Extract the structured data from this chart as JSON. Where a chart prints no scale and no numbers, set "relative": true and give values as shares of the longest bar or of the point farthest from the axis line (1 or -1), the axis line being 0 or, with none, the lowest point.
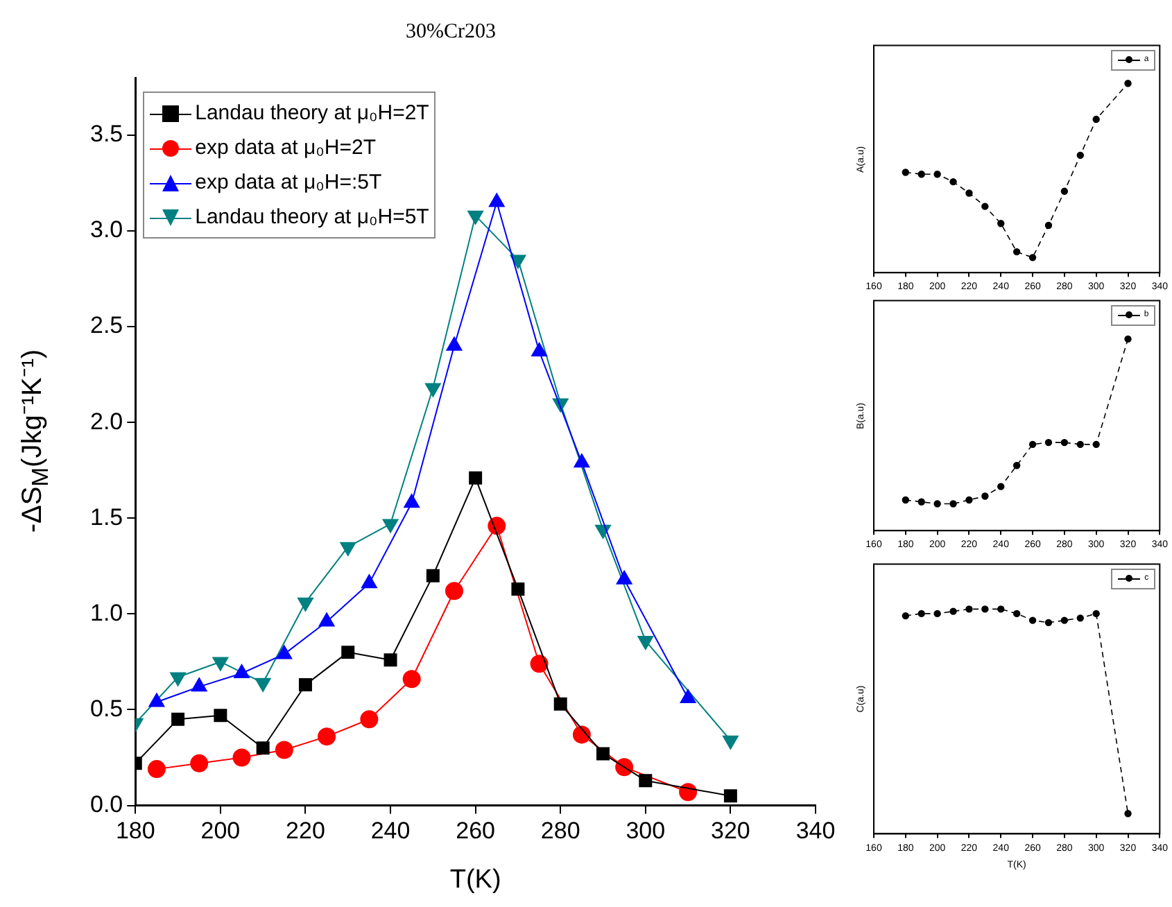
{
  "chart_data": [
    {
      "type": "line",
      "title": "30%Cr203",
      "xlabel": "T(K)",
      "ylabel": "-ΔS$_{M}$(Jkg⁻¹K⁻¹)",
      "xlim": [
        180,
        340
      ],
      "xticks": [
        180,
        200,
        220,
        240,
        260,
        280,
        300,
        320,
        340
      ],
      "ylim": [
        0,
        3.8
      ],
      "yticks": [
        {
          "value": 0,
          "label": "0.0"
        },
        {
          "value": 0.5,
          "label": "0.5"
        },
        {
          "value": 1,
          "label": "1.0"
        },
        {
          "value": 1.5,
          "label": "1.5"
        },
        {
          "value": 2,
          "label": "2.0"
        },
        {
          "value": 2.5,
          "label": "2.5"
        },
        {
          "value": 3,
          "label": "3.0"
        },
        {
          "value": 3.5,
          "label": "3.5"
        }
      ],
      "legend": "top left",
      "series": [
        {
          "name": "Landau theory at μ₀H=2T",
          "color": "#000000",
          "marker": "square",
          "x": [
            180,
            190,
            200,
            210,
            220,
            230,
            240,
            250,
            260,
            270,
            280,
            290,
            300,
            320
          ],
          "values": [
            0.22,
            0.45,
            0.47,
            0.3,
            0.63,
            0.8,
            0.76,
            1.2,
            1.71,
            1.13,
            0.53,
            0.27,
            0.13,
            0.05
          ]
        },
        {
          "name": "exp data at μ₀H=2T",
          "color": "#ff0000",
          "marker": "circle",
          "x": [
            185,
            195,
            205,
            215,
            225,
            235,
            245,
            255,
            265,
            275,
            285,
            295,
            310
          ],
          "values": [
            0.19,
            0.22,
            0.25,
            0.29,
            0.36,
            0.45,
            0.66,
            1.12,
            1.46,
            0.74,
            0.37,
            0.2,
            0.07
          ]
        },
        {
          "name": "exp data at μ₀H=:5T",
          "color": "#0000ff",
          "marker": "triangle",
          "x": [
            185,
            195,
            205,
            215,
            225,
            235,
            245,
            255,
            265,
            275,
            285,
            295,
            310
          ],
          "values": [
            0.54,
            0.62,
            0.69,
            0.79,
            0.96,
            1.16,
            1.58,
            2.4,
            3.15,
            2.37,
            1.79,
            1.18,
            0.56
          ]
        },
        {
          "name": "Landau theory at μ₀H=5T",
          "color": "#008080",
          "marker": "triangle-down",
          "x": [
            180,
            190,
            200,
            210,
            220,
            230,
            240,
            250,
            260,
            270,
            280,
            290,
            300,
            320
          ],
          "values": [
            0.43,
            0.67,
            0.75,
            0.64,
            1.06,
            1.35,
            1.47,
            2.18,
            3.08,
            2.85,
            2.1,
            1.44,
            0.86,
            0.34
          ]
        }
      ]
    },
    {
      "type": "line",
      "relative": true,
      "tick_labels": "x",
      "ylabel": "A(a.u)",
      "xlim": [
        160,
        340
      ],
      "xticks": [
        160,
        180,
        200,
        220,
        240,
        260,
        280,
        300,
        320,
        340
      ],
      "legend": "top right",
      "series": [
        {
          "name": "a",
          "color": "#000000",
          "marker": "circle",
          "line_style": "dashed",
          "x": [
            180,
            190,
            200,
            210,
            220,
            230,
            240,
            250,
            260,
            270,
            280,
            290,
            300,
            320
          ],
          "values": [
            0.53,
            0.52,
            0.52,
            0.48,
            0.42,
            0.35,
            0.26,
            0.11,
            0.08,
            0.25,
            0.43,
            0.62,
            0.81,
            1
          ]
        }
      ]
    },
    {
      "type": "line",
      "relative": true,
      "tick_labels": "x",
      "ylabel": "B(a.u)",
      "xlim": [
        160,
        340
      ],
      "xticks": [
        160,
        180,
        200,
        220,
        240,
        260,
        280,
        300,
        320,
        340
      ],
      "legend": "top right",
      "series": [
        {
          "name": "b",
          "color": "#000000",
          "marker": "circle",
          "line_style": "dashed",
          "x": [
            180,
            190,
            200,
            210,
            220,
            230,
            240,
            250,
            260,
            270,
            280,
            290,
            300,
            320
          ],
          "values": [
            0.16,
            0.15,
            0.14,
            0.14,
            0.16,
            0.18,
            0.23,
            0.34,
            0.45,
            0.46,
            0.46,
            0.45,
            0.45,
            1
          ]
        }
      ]
    },
    {
      "type": "line",
      "relative": true,
      "tick_labels": "x",
      "xlabel": "T(K)",
      "ylabel": "C(a.u)",
      "xlim": [
        160,
        340
      ],
      "xticks": [
        160,
        180,
        200,
        220,
        240,
        260,
        280,
        300,
        320,
        340
      ],
      "legend": "top right",
      "series": [
        {
          "name": "c",
          "color": "#000000",
          "marker": "circle",
          "line_style": "dashed",
          "x": [
            180,
            190,
            200,
            210,
            220,
            230,
            240,
            250,
            260,
            270,
            280,
            290,
            300,
            320
          ],
          "values": [
            0.97,
            0.98,
            0.98,
            0.99,
            1,
            1,
            1,
            0.98,
            0.95,
            0.94,
            0.95,
            0.96,
            0.98,
            0.09
          ]
        }
      ]
    }
  ]
}
